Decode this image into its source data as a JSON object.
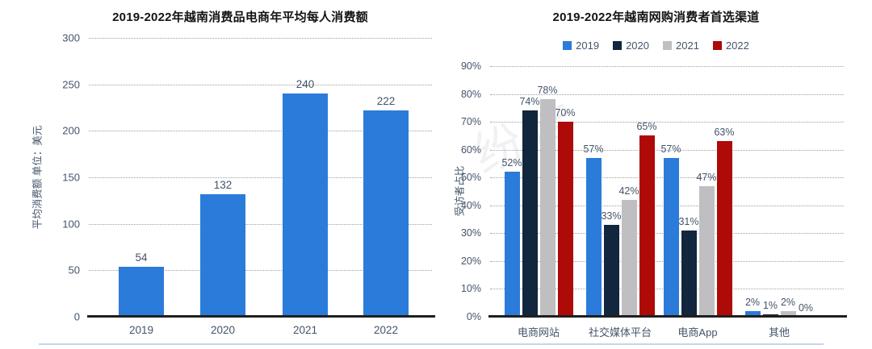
{
  "page": {
    "background": "#ffffff",
    "divider_color": "#c5d6ea",
    "watermark": "纷传",
    "text_color": "#44546a",
    "title_color": "#141414",
    "axis_color": "#1f1f1f",
    "grid_color": "#9f9f9f"
  },
  "chart_data": [
    {
      "type": "bar",
      "title": "2019-2022年越南消费品电商年平均每人消费额",
      "ylabel": "平均消费额 单位：美元",
      "categories": [
        "2019",
        "2020",
        "2021",
        "2022"
      ],
      "values": [
        54,
        132,
        240,
        222
      ],
      "value_labels": [
        "54",
        "132",
        "240",
        "222"
      ],
      "bar_color": "#2b7bdb",
      "ylim": [
        0,
        300
      ],
      "ytick_step": 50,
      "ytick_labels": [
        "0",
        "50",
        "100",
        "150",
        "200",
        "250",
        "300"
      ],
      "ytick_suffix": "",
      "value_suffix": "",
      "grid": "horizontal-dotted",
      "legend_position": "none"
    },
    {
      "type": "bar",
      "title": "2019-2022年越南网购消费者首选渠道",
      "ylabel": "受访者占比",
      "categories": [
        "电商网站",
        "社交媒体平台",
        "电商App",
        "其他"
      ],
      "series": [
        {
          "name": "2019",
          "color": "#2b7bdb",
          "values": [
            52,
            57,
            57,
            2
          ]
        },
        {
          "name": "2020",
          "color": "#12263d",
          "values": [
            74,
            33,
            31,
            1
          ]
        },
        {
          "name": "2021",
          "color": "#bfbfc1",
          "values": [
            78,
            42,
            47,
            2
          ]
        },
        {
          "name": "2022",
          "color": "#ad0a08",
          "values": [
            70,
            65,
            63,
            0
          ]
        }
      ],
      "ylim": [
        0,
        90
      ],
      "ytick_step": 10,
      "ytick_labels": [
        "0%",
        "10%",
        "20%",
        "30%",
        "40%",
        "50%",
        "60%",
        "70%",
        "80%",
        "90%"
      ],
      "ytick_suffix": "%",
      "value_suffix": "%",
      "grid": "horizontal-dotted",
      "legend_position": "top"
    }
  ]
}
